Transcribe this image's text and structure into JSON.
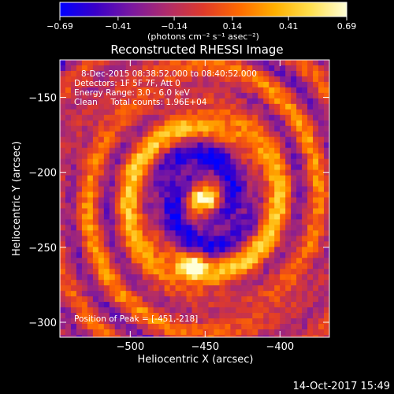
{
  "chart_data": {
    "type": "heatmap",
    "title": "Reconstructed RHESSI Image",
    "xlabel": "Heliocentric X (arcsec)",
    "ylabel": "Heliocentric Y (arcsec)",
    "xlim": [
      -547,
      -367
    ],
    "ylim": [
      -310,
      -125
    ],
    "x_ticks": [
      -500,
      -450,
      -400
    ],
    "y_ticks": [
      -150,
      -200,
      -250,
      -300
    ],
    "x_tick_labels": [
      "−500",
      "−450",
      "−400"
    ],
    "y_tick_labels": [
      "−150",
      "−200",
      "−250",
      "−300"
    ],
    "colorbar": {
      "range": [
        -0.69,
        0.69
      ],
      "tick_values": [
        -0.69,
        -0.41,
        -0.14,
        0.14,
        0.41,
        0.69
      ],
      "tick_labels": [
        "−0.69",
        "−0.41",
        "−0.14",
        "0.14",
        "0.41",
        "0.69"
      ],
      "unit_label": "(photons cm⁻² s⁻¹ asec⁻²)"
    },
    "colormap": [
      "#0000ff",
      "#3a00c8",
      "#7a18a0",
      "#b02c6a",
      "#e03a2a",
      "#ff6a00",
      "#ffb000",
      "#ffe050",
      "#ffffd8"
    ],
    "features": {
      "peak": {
        "x": -451,
        "y": -218,
        "value": 0.69
      },
      "secondary_source": {
        "x": -458,
        "y": -262,
        "value": 0.4
      }
    },
    "annotations": [
      "8-Dec-2015 08:38:52.000 to 08:40:52.000",
      "Detectors: 1F 5F 7F, Att 0",
      "Energy Range: 3.0 - 6.0 keV",
      "Clean     Total counts: 1.96E+04",
      "Position of Peak = [-451,-218]"
    ]
  },
  "footer": {
    "timestamp": "14-Oct-2017 15:49"
  }
}
